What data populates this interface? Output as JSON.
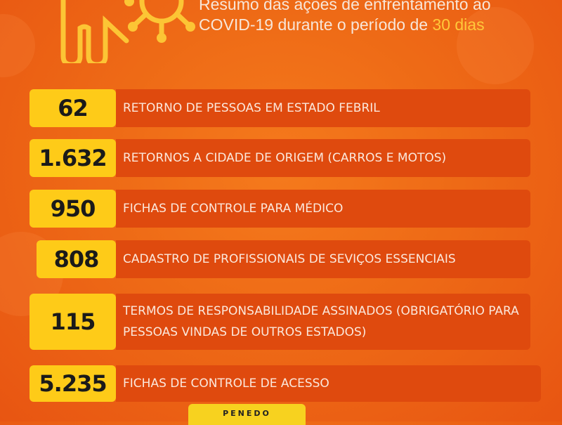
{
  "header": {
    "title_main": "Resumo das ações de enfrentamento ao COVID-19 durante o período de ",
    "title_highlight": "30 dias",
    "icon": "hand-virus-icon"
  },
  "stats": [
    {
      "value": "62",
      "label": "RETORNO DE PESSOAS EM ESTADO FEBRIL"
    },
    {
      "value": "1.632",
      "label": "RETORNOS A CIDADE DE ORIGEM (CARROS E MOTOS)"
    },
    {
      "value": "950",
      "label": "FICHAS DE CONTROLE PARA MÉDICO"
    },
    {
      "value": "808",
      "label": "CADASTRO DE PROFISSIONAIS DE SEVIÇOS ESSENCIAIS"
    },
    {
      "value": "115",
      "label": "TERMOS DE RESPONSABILIDADE ASSINADOS (OBRIGATÓRIO PARA PESSOAS VINDAS DE OUTROS ESTADOS)"
    },
    {
      "value": "5.235",
      "label": "FICHAS DE CONTROLE DE ACESSO"
    }
  ],
  "footer": {
    "label": "PENEDO"
  },
  "colors": {
    "background": "#ee6a16",
    "number_box": "#fecb18",
    "bar": "#df4a0e",
    "highlight": "#ffc83a"
  }
}
